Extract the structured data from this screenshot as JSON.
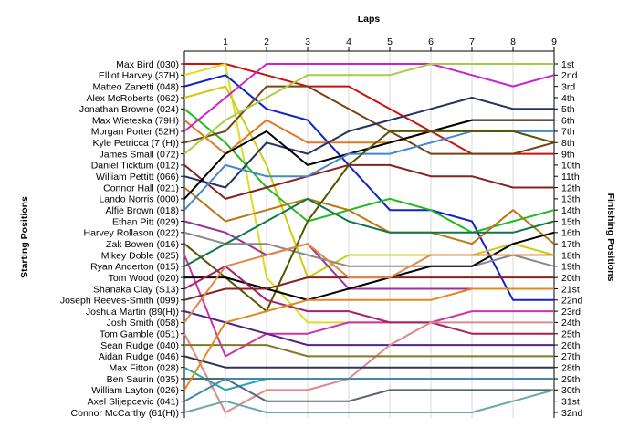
{
  "chart_data": {
    "type": "line",
    "title": "",
    "xlabel": "Laps",
    "ylabel_left": "Starting Positions",
    "ylabel_right": "Finishing Positions",
    "x": [
      0,
      1,
      2,
      3,
      4,
      5,
      6,
      7,
      8,
      9
    ],
    "x_tick_labels": [
      "1",
      "2",
      "3",
      "4",
      "5",
      "6",
      "7",
      "8",
      "9"
    ],
    "ylim": [
      1,
      32
    ],
    "y_inverted": true,
    "grid": "vertical",
    "starting_labels": [
      "Max Bird (030)",
      "Elliot Harvey (37H)",
      "Matteo Zanetti (048)",
      "Alex McRoberts (062)",
      "Jonathan Browne (024)",
      "Max Wieteska (79H)",
      "Morgan Porter (52H)",
      "Kyle Petricca (7 (H))",
      "James Small (072)",
      "Daniel Ticktum (012)",
      "William Pettitt (066)",
      "Connor Hall (021)",
      "Lando Norris (000)",
      "Alfie Brown (018)",
      "Ethan Pitt (029)",
      "Harvey Rollason (022)",
      "Zak Bowen (016)",
      "Mikey Doble (025)",
      "Ryan Anderton (015)",
      "Tom Wood (020)",
      "Shanaka Clay (S13)",
      "Joseph Reeves-Smith (099)",
      "Joshua Martin (89(H))",
      "Josh Smith (058)",
      "Tom Gamble (051)",
      "Sean Rudge (040)",
      "Aidan Rudge (046)",
      "Max Fitton (028)",
      "Ben Saurin (035)",
      "William Layton (026)",
      "Axel Slijepcevic (041)",
      "Connor McCarthy (61(H))"
    ],
    "finishing_labels": [
      "1st",
      "2nd",
      "3rd",
      "4th",
      "5th",
      "6th",
      "7th",
      "8th",
      "9th",
      "10th",
      "11th",
      "12th",
      "13th",
      "14th",
      "15th",
      "16th",
      "17th",
      "18th",
      "19th",
      "20th",
      "21st",
      "22nd",
      "23rd",
      "24th",
      "25th",
      "26th",
      "27th",
      "28th",
      "29th",
      "30th",
      "31st",
      "32nd"
    ],
    "series": [
      {
        "color": "#cc1111",
        "values": [
          1,
          1,
          2,
          3,
          3,
          5,
          7,
          9,
          9,
          9
        ]
      },
      {
        "color": "#dddd22",
        "values": [
          2,
          1,
          20,
          24,
          24,
          24,
          24,
          25,
          25,
          25
        ]
      },
      {
        "color": "#1122cc",
        "values": [
          3,
          2,
          5,
          6,
          10,
          14,
          14,
          15,
          22,
          22
        ]
      },
      {
        "color": "#cccc11",
        "values": [
          4,
          3,
          10,
          20,
          18,
          18,
          18,
          18,
          17,
          18
        ]
      },
      {
        "color": "#22bb22",
        "values": [
          5,
          8,
          12,
          15,
          14,
          13,
          14,
          16,
          15,
          14
        ]
      },
      {
        "color": "#e07722",
        "values": [
          6,
          9,
          6,
          8,
          8,
          8,
          7,
          6,
          6,
          6
        ]
      },
      {
        "color": "#cc22cc",
        "values": [
          7,
          4,
          1,
          1,
          1,
          1,
          1,
          2,
          3,
          2
        ]
      },
      {
        "color": "#774411",
        "values": [
          8,
          7,
          3,
          3,
          5,
          7,
          9,
          9,
          9,
          8
        ]
      },
      {
        "color": "#aacc44",
        "values": [
          9,
          6,
          4,
          2,
          2,
          2,
          1,
          1,
          1,
          1
        ]
      },
      {
        "color": "#882222",
        "values": [
          10,
          13,
          12,
          11,
          10,
          10,
          11,
          11,
          12,
          12
        ]
      },
      {
        "color": "#223366",
        "values": [
          11,
          12,
          8,
          9,
          7,
          6,
          5,
          4,
          5,
          5
        ]
      },
      {
        "color": "#bb7711",
        "values": [
          12,
          15,
          14,
          13,
          14,
          16,
          16,
          17,
          14,
          17
        ]
      },
      {
        "color": "#000000",
        "values": [
          13,
          9,
          7,
          10,
          9,
          8,
          7,
          6,
          6,
          6
        ]
      },
      {
        "color": "#4488cc",
        "values": [
          14,
          10,
          11,
          11,
          9,
          9,
          8,
          7,
          7,
          7
        ]
      },
      {
        "color": "#993399",
        "values": [
          15,
          16,
          18,
          17,
          21,
          21,
          21,
          21,
          21,
          21
        ]
      },
      {
        "color": "#888888",
        "values": [
          16,
          17,
          17,
          18,
          19,
          19,
          19,
          19,
          18,
          19
        ]
      },
      {
        "color": "#555500",
        "values": [
          17,
          20,
          23,
          15,
          10,
          7,
          7,
          7,
          7,
          8
        ]
      },
      {
        "color": "#cc33aa",
        "values": [
          18,
          27,
          25,
          25,
          24,
          24,
          24,
          23,
          23,
          23
        ]
      },
      {
        "color": "#117744",
        "values": [
          19,
          17,
          15,
          13,
          15,
          16,
          16,
          16,
          16,
          15
        ]
      },
      {
        "color": "#000000",
        "values": [
          20,
          20,
          21,
          22,
          21,
          20,
          19,
          19,
          17,
          16
        ]
      },
      {
        "color": "#aa2266",
        "values": [
          21,
          19,
          22,
          23,
          23,
          24,
          24,
          25,
          25,
          25
        ]
      },
      {
        "color": "#882222",
        "values": [
          22,
          21,
          21,
          20,
          20,
          20,
          20,
          20,
          20,
          20
        ]
      },
      {
        "color": "#552288",
        "values": [
          23,
          24,
          25,
          26,
          26,
          26,
          26,
          26,
          26,
          26
        ]
      },
      {
        "color": "#e08844",
        "values": [
          24,
          19,
          18,
          17,
          20,
          20,
          18,
          18,
          18,
          18
        ]
      },
      {
        "color": "#dd8888",
        "values": [
          25,
          32,
          30,
          30,
          29,
          26,
          24,
          24,
          24,
          24
        ]
      },
      {
        "color": "#887722",
        "values": [
          26,
          26,
          26,
          27,
          27,
          27,
          27,
          27,
          27,
          27
        ]
      },
      {
        "color": "#333355",
        "values": [
          27,
          28,
          28,
          28,
          28,
          28,
          28,
          28,
          28,
          28
        ]
      },
      {
        "color": "#22aaaa",
        "values": [
          28,
          30,
          29,
          29,
          29,
          29,
          29,
          29,
          29,
          29
        ]
      },
      {
        "color": "#556677",
        "values": [
          29,
          29,
          31,
          31,
          31,
          30,
          30,
          30,
          30,
          30
        ]
      },
      {
        "color": "#e08822",
        "values": [
          30,
          24,
          23,
          22,
          22,
          22,
          22,
          21,
          21,
          21
        ]
      },
      {
        "color": "#4488aa",
        "values": [
          31,
          29,
          29,
          29,
          29,
          29,
          29,
          29,
          29,
          29
        ]
      },
      {
        "color": "#66aaaa",
        "values": [
          32,
          31,
          32,
          32,
          32,
          32,
          32,
          32,
          31,
          30
        ]
      }
    ]
  }
}
